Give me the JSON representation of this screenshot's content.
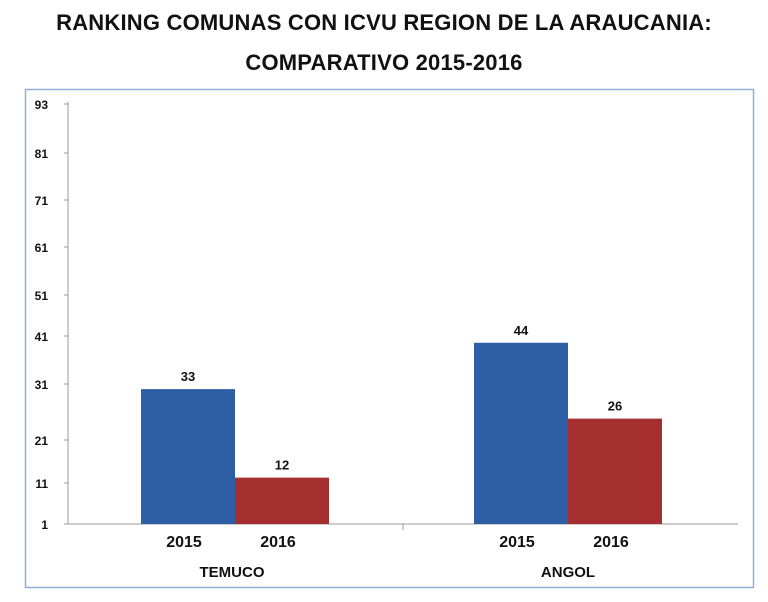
{
  "title_line1": "RANKING COMUNAS CON ICVU REGION DE LA ARAUCANIA:",
  "title_line2": "COMPARATIVO 2015-2016",
  "chart_data": {
    "type": "bar",
    "title": "RANKING COMUNAS CON ICVU REGION DE LA ARAUCANIA: COMPARATIVO 2015-2016",
    "groups": [
      {
        "group_label": "TEMUCO",
        "bars": [
          {
            "x_label": "2015",
            "value": 33,
            "color": "#2e5ea6"
          },
          {
            "x_label": "2016",
            "value": 12,
            "color": "#a52f2f"
          }
        ]
      },
      {
        "group_label": "ANGOL",
        "bars": [
          {
            "x_label": "2015",
            "value": 44,
            "color": "#2e5ea6"
          },
          {
            "x_label": "2016",
            "value": 26,
            "color": "#a52f2f"
          }
        ]
      }
    ],
    "yticks": [
      "1",
      "11",
      "21",
      "31",
      "41",
      "51",
      "61",
      "71",
      "81",
      "93"
    ],
    "grid": false,
    "frame_color": "#8fb0d6"
  }
}
